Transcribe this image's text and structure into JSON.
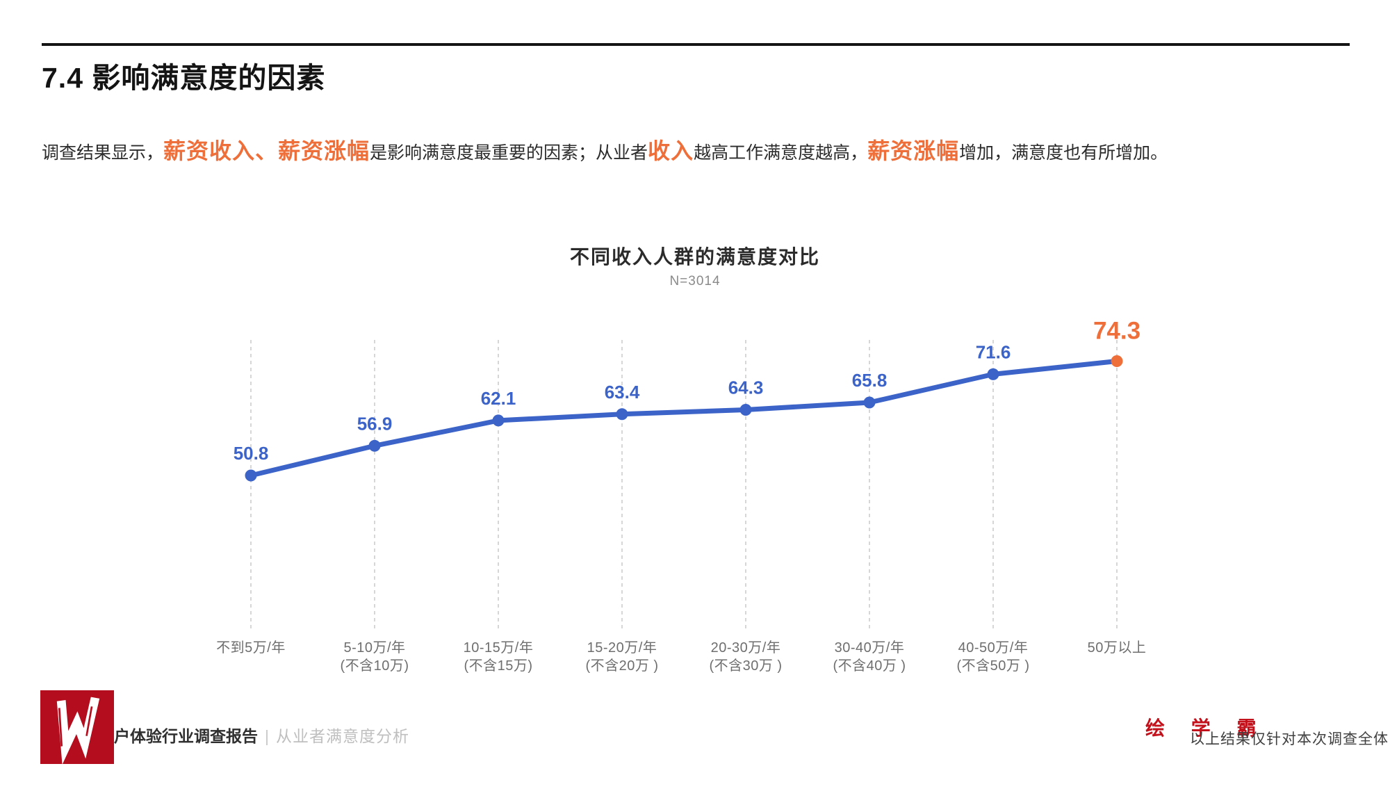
{
  "page": {
    "title": "7.4 影响满意度的因素"
  },
  "intro": {
    "segments": [
      {
        "text": "调查结果显示，",
        "em": false
      },
      {
        "text": "薪资收入、薪资涨幅",
        "em": true
      },
      {
        "text": "是影响满意度最重要的因素；从业者",
        "em": false
      },
      {
        "text": "收入",
        "em": true
      },
      {
        "text": "越高工作满意度越高，",
        "em": false
      },
      {
        "text": "薪资涨幅",
        "em": true
      },
      {
        "text": "增加，满意度也有所增加。",
        "em": false
      }
    ]
  },
  "chart": {
    "title": "不同收入人群的满意度对比",
    "subtitle": "N=3014"
  },
  "chart_data": {
    "type": "line",
    "title": "不同收入人群的满意度对比",
    "subtitle": "N=3014",
    "categories": [
      [
        "不到5万/年"
      ],
      [
        "5-10万/年",
        "(不含10万)"
      ],
      [
        "10-15万/年",
        "(不含15万)"
      ],
      [
        "15-20万/年",
        "(不含20万 )"
      ],
      [
        "20-30万/年",
        "(不含30万 )"
      ],
      [
        "30-40万/年",
        "(不含40万 )"
      ],
      [
        "40-50万/年",
        "(不含50万 )"
      ],
      [
        "50万以上"
      ]
    ],
    "values": [
      50.8,
      56.9,
      62.1,
      63.4,
      64.3,
      65.8,
      71.6,
      74.3
    ],
    "xlabel": "",
    "ylabel": "",
    "ylim": [
      48,
      78
    ],
    "grid": "vertical-dashed",
    "legend": "none",
    "line_color": "#3c63c8",
    "highlight_last_color": "#ee6f3a",
    "gridline_color": "#c9c9c9",
    "axis_label_color": "#6e6e6e"
  },
  "footer": {
    "report_label": "户体验行业调查报告",
    "divider": "|",
    "section_label": "从业者满意度分析",
    "brand": "绘 学 霸",
    "note": "以上结果仅针对本次调查全体"
  },
  "colors": {
    "accent_blue": "#3c63c8",
    "accent_orange": "#ee6f3a",
    "brand_red": "#c3121c",
    "logo_red": "#b30d1e",
    "rule_black": "#141414"
  }
}
